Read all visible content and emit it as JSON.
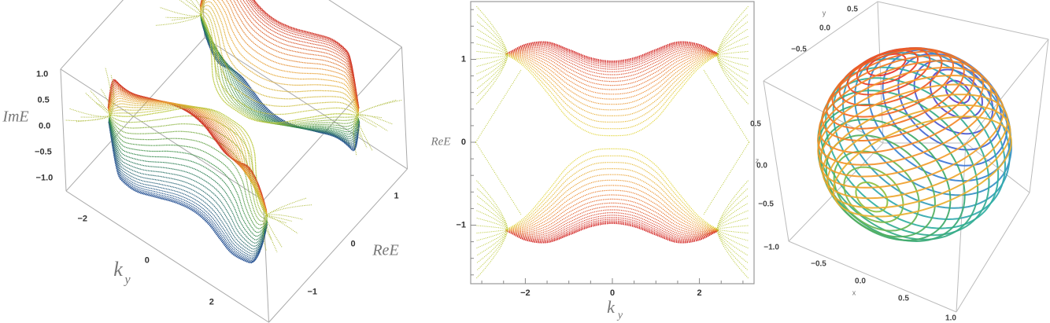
{
  "chart_data": [
    {
      "type": "surface3d",
      "title": "",
      "xlabel": "k",
      "xlabel_sub": "y",
      "ylabel": "ReE",
      "zlabel": "ImE",
      "xlim": [
        -3.14,
        3.14
      ],
      "ylim": [
        -1.6,
        1.6
      ],
      "zlim": [
        -1.25,
        1.1
      ],
      "x_ticks": [
        -2,
        0,
        2
      ],
      "x_tick_labels": [
        "−2",
        "0",
        "2"
      ],
      "y_ticks": [
        -1,
        0,
        1
      ],
      "y_tick_labels": [
        "−1",
        "0",
        "1"
      ],
      "z_ticks": [
        1.0,
        0.5,
        0.0,
        -0.5,
        -1.0
      ],
      "z_tick_labels": [
        "1.0",
        "0.5",
        "0.0",
        "−0.5",
        "−1.0"
      ],
      "color_scale": [
        "#2b4fa0",
        "#2f8a44",
        "#b9c83a",
        "#e9a530",
        "#cf2a2a"
      ]
    },
    {
      "type": "line",
      "title": "",
      "xlabel": "k",
      "xlabel_sub": "y",
      "ylabel": "ReE",
      "xlim": [
        -3.14,
        3.14
      ],
      "ylim": [
        -1.68,
        1.68
      ],
      "x_ticks": [
        -2,
        0,
        2
      ],
      "x_tick_labels": [
        "−2",
        "0",
        "2"
      ],
      "y_ticks": [
        1,
        0,
        -1
      ],
      "y_tick_labels": [
        "1",
        "0",
        "−1"
      ],
      "band_count": 22,
      "symmetric_about_zero": true,
      "x": [
        -2.5,
        -2,
        -1.5,
        -1,
        -0.5,
        0,
        0.5,
        1,
        1.5,
        2,
        2.5
      ],
      "series": [
        {
          "name": "outermost band",
          "values": [
            1.06,
            1.18,
            1.21,
            1.12,
            1.02,
            0.98,
            1.02,
            1.12,
            1.21,
            1.18,
            1.06
          ]
        },
        {
          "name": "innermost band",
          "values": [
            1.06,
            0.9,
            0.6,
            0.28,
            0.11,
            0.08,
            0.11,
            0.28,
            0.6,
            0.9,
            1.06
          ]
        }
      ],
      "edge_state": {
        "x": [
          -3.14,
          -2.1
        ],
        "values": [
          0,
          0.87
        ]
      },
      "colors": [
        "#d42a2a",
        "#ec8a2e",
        "#e2d640"
      ],
      "flare_color": "#b8c832"
    },
    {
      "type": "scatter3d",
      "title": "",
      "xlabel": "x",
      "ylabel": "y",
      "zlabel": "z",
      "xlim": [
        -1,
        1
      ],
      "ylim": [
        -1,
        1
      ],
      "zlim": [
        -1,
        1
      ],
      "x_tick_labels": [
        "−0.5",
        "0.0",
        "0.5",
        "1.0"
      ],
      "y_tick_labels": [
        "0.5",
        "0.0",
        "−0.5"
      ],
      "z_tick_labels": [
        "0.5",
        "0.0",
        "−0.5",
        "−1.0"
      ],
      "latitude_colors": [
        "#e8312a",
        "#f26b22",
        "#f39a2a",
        "#e8b030"
      ],
      "meridian_colors": [
        "#5a3cc8",
        "#3a78d8",
        "#2fb0a8",
        "#3aa86a",
        "#8cc040"
      ]
    }
  ]
}
